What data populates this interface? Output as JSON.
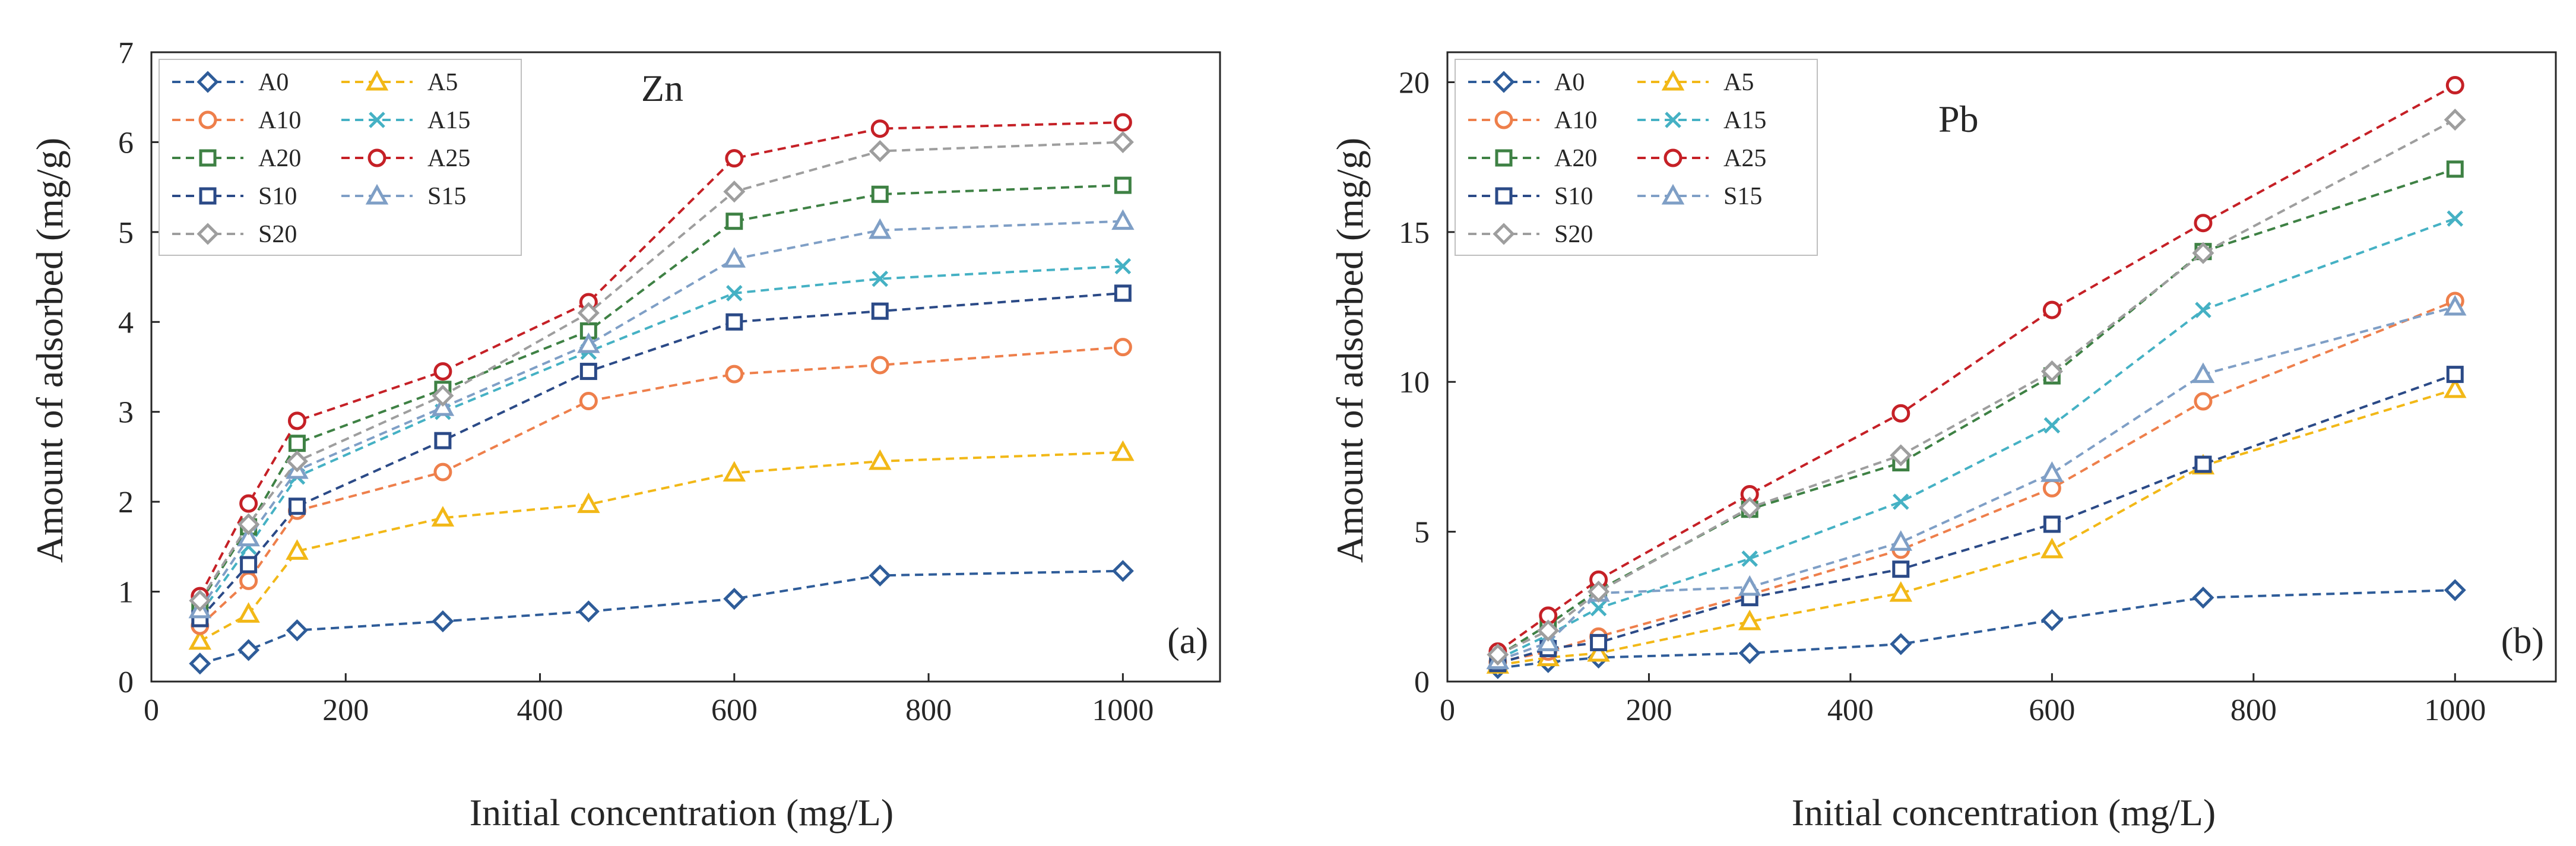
{
  "chart_data": [
    {
      "type": "line",
      "title": "Zn",
      "panel_label": "(a)",
      "xlabel": "Initial concentration (mg/L)",
      "ylabel": "Amount of adsorbed (mg/g)",
      "xlim": [
        0,
        1100
      ],
      "ylim": [
        0,
        7
      ],
      "xticks": [
        0,
        200,
        400,
        600,
        800,
        1000
      ],
      "yticks": [
        0,
        1,
        2,
        3,
        4,
        5,
        6,
        7
      ],
      "grid": false,
      "legend_position": "top-left",
      "x": [
        50,
        100,
        150,
        300,
        450,
        600,
        750,
        1000
      ],
      "series": [
        {
          "name": "A0",
          "color": "#2e5c99",
          "marker": "diamond",
          "values": [
            0.2,
            0.35,
            0.57,
            0.67,
            0.78,
            0.92,
            1.18,
            1.23
          ]
        },
        {
          "name": "A5",
          "color": "#f2b817",
          "marker": "triangle",
          "values": [
            0.45,
            0.75,
            1.45,
            1.82,
            1.97,
            2.32,
            2.45,
            2.55
          ]
        },
        {
          "name": "A10",
          "color": "#ee7f4b",
          "marker": "circle",
          "values": [
            0.62,
            1.12,
            1.9,
            2.33,
            3.12,
            3.42,
            3.52,
            3.72
          ]
        },
        {
          "name": "A15",
          "color": "#45b1c4",
          "marker": "x",
          "values": [
            0.75,
            1.5,
            2.28,
            3.0,
            3.67,
            4.32,
            4.48,
            4.62
          ]
        },
        {
          "name": "A20",
          "color": "#3e8144",
          "marker": "square",
          "values": [
            0.88,
            1.72,
            2.65,
            3.25,
            3.9,
            5.12,
            5.42,
            5.52
          ]
        },
        {
          "name": "A25",
          "color": "#c52026",
          "marker": "circle",
          "values": [
            0.95,
            1.98,
            2.9,
            3.45,
            4.22,
            5.82,
            6.15,
            6.22
          ]
        },
        {
          "name": "S10",
          "color": "#2b4a87",
          "marker": "square",
          "values": [
            0.7,
            1.3,
            1.95,
            2.68,
            3.45,
            4.0,
            4.12,
            4.32
          ]
        },
        {
          "name": "S15",
          "color": "#7f9fc6",
          "marker": "triangle",
          "values": [
            0.8,
            1.6,
            2.35,
            3.05,
            3.75,
            4.7,
            5.02,
            5.12
          ]
        },
        {
          "name": "S20",
          "color": "#9e9e9e",
          "marker": "diamond",
          "values": [
            0.9,
            1.75,
            2.45,
            3.18,
            4.1,
            5.45,
            5.9,
            6.0
          ]
        }
      ]
    },
    {
      "type": "line",
      "title": "Pb",
      "panel_label": "(b)",
      "xlabel": "Initial concentration (mg/L)",
      "ylabel": "Amount of adsorbed (mg/g)",
      "xlim": [
        0,
        1100
      ],
      "ylim": [
        0,
        21
      ],
      "xticks": [
        0,
        200,
        400,
        600,
        800,
        1000
      ],
      "yticks": [
        0,
        5,
        10,
        15,
        20
      ],
      "grid": false,
      "legend_position": "top-left",
      "x": [
        50,
        100,
        150,
        300,
        450,
        600,
        750,
        1000
      ],
      "series": [
        {
          "name": "A0",
          "color": "#2e5c99",
          "marker": "diamond",
          "values": [
            0.45,
            0.65,
            0.8,
            0.95,
            1.25,
            2.05,
            2.8,
            3.05
          ]
        },
        {
          "name": "A5",
          "color": "#f2b817",
          "marker": "triangle",
          "values": [
            0.55,
            0.8,
            0.95,
            2.0,
            2.95,
            4.4,
            7.2,
            9.75
          ]
        },
        {
          "name": "A10",
          "color": "#ee7f4b",
          "marker": "circle",
          "values": [
            0.65,
            1.0,
            1.5,
            2.9,
            4.4,
            6.45,
            9.35,
            12.7
          ]
        },
        {
          "name": "A15",
          "color": "#45b1c4",
          "marker": "x",
          "values": [
            0.75,
            1.55,
            2.45,
            4.1,
            6.0,
            8.55,
            12.4,
            15.45
          ]
        },
        {
          "name": "A20",
          "color": "#3e8144",
          "marker": "square",
          "values": [
            0.85,
            1.9,
            3.05,
            5.75,
            7.3,
            10.2,
            14.35,
            17.1
          ]
        },
        {
          "name": "A25",
          "color": "#c52026",
          "marker": "circle",
          "values": [
            1.0,
            2.2,
            3.4,
            6.25,
            8.95,
            12.4,
            15.3,
            19.9
          ]
        },
        {
          "name": "S10",
          "color": "#2b4a87",
          "marker": "square",
          "values": [
            0.6,
            1.1,
            1.3,
            2.8,
            3.75,
            5.25,
            7.25,
            10.25
          ]
        },
        {
          "name": "S15",
          "color": "#7f9fc6",
          "marker": "triangle",
          "values": [
            0.7,
            1.3,
            2.95,
            3.15,
            4.65,
            6.95,
            10.25,
            12.5
          ]
        },
        {
          "name": "S20",
          "color": "#9e9e9e",
          "marker": "diamond",
          "values": [
            0.9,
            1.7,
            3.0,
            5.8,
            7.55,
            10.35,
            14.3,
            18.75
          ]
        }
      ]
    }
  ]
}
